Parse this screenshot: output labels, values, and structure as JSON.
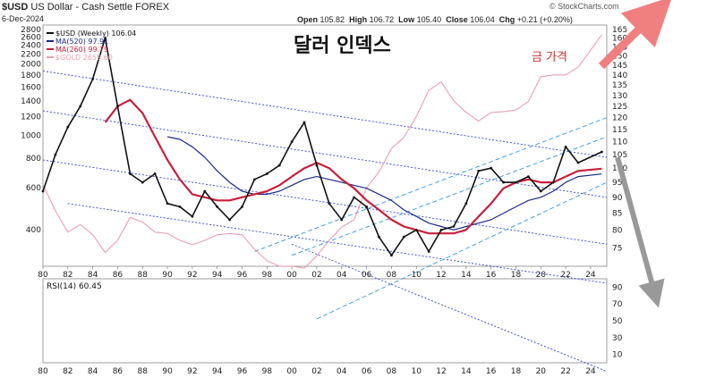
{
  "header": {
    "symbol": "$USD",
    "name": "US Dollar - Cash Settle FOREX",
    "date": "6-Dec-2024",
    "open_label": "Open",
    "open": "105.82",
    "high_label": "High",
    "high": "106.72",
    "low_label": "Low",
    "low": "105.40",
    "close_label": "Close",
    "close": "106.04",
    "chg_label": "Chg",
    "chg": "+0.21 (+0.20%)",
    "watermark": "© StockCharts.com"
  },
  "annotations": {
    "title": "달러 인덱스",
    "gold_label": "금 가격"
  },
  "colors": {
    "usd": "#111111",
    "ma520": "#1a2a8c",
    "ma260": "#c8203c",
    "gold": "#e8a0b0",
    "channel_dotted": "#3344cc",
    "channel_dashed": "#3399dd",
    "arrow_up": "#f08080",
    "arrow_down": "#999999"
  },
  "chart_data": [
    {
      "type": "line",
      "title": "$USD (Weekly) 106.04",
      "legend": [
        {
          "name": "$USD (Weekly)",
          "value": "106.04"
        },
        {
          "name": "MA(520)",
          "value": "97.91"
        },
        {
          "name": "MA(260)",
          "value": "99.79"
        },
        {
          "name": "$GOLD",
          "value": "2659.60"
        }
      ],
      "x_ticks": [
        "80",
        "82",
        "84",
        "86",
        "88",
        "90",
        "92",
        "94",
        "96",
        "98",
        "00",
        "02",
        "04",
        "06",
        "08",
        "10",
        "12",
        "14",
        "16",
        "18",
        "20",
        "22",
        "24"
      ],
      "y_right_ticks": [
        "165",
        "160",
        "155",
        "150",
        "145",
        "140",
        "135",
        "130",
        "125",
        "120",
        "115",
        "110",
        "105",
        "100",
        "95",
        "90",
        "85",
        "80",
        "75"
      ],
      "y_left_ticks": [
        "2800",
        "2600",
        "2400",
        "2200",
        "2000",
        "1800",
        "1600",
        "1400",
        "1200",
        "1000",
        "800",
        "600",
        "400"
      ],
      "x": [
        1980,
        1981,
        1982,
        1983,
        1984,
        1985,
        1986,
        1987,
        1988,
        1989,
        1990,
        1991,
        1992,
        1993,
        1994,
        1995,
        1996,
        1997,
        1998,
        1999,
        2000,
        2001,
        2002,
        2003,
        2004,
        2005,
        2006,
        2007,
        2008,
        2009,
        2010,
        2011,
        2012,
        2013,
        2014,
        2015,
        2016,
        2017,
        2018,
        2019,
        2020,
        2021,
        2022,
        2023,
        2024.9
      ],
      "series": [
        {
          "name": "$USD (Weekly)",
          "axis": "right",
          "values": [
            92,
            105,
            116,
            125,
            138,
            160,
            125,
            98,
            95,
            98,
            88,
            87,
            84,
            92,
            87,
            83,
            87,
            96,
            98,
            101,
            110,
            118,
            101,
            88,
            83,
            90,
            87,
            78,
            73,
            78,
            80,
            74,
            80,
            81,
            88,
            99,
            100,
            95,
            95,
            97,
            92,
            95,
            108,
            102,
            106.04
          ]
        },
        {
          "name": "MA(520)",
          "axis": "right",
          "values": [
            null,
            null,
            null,
            null,
            null,
            null,
            null,
            null,
            null,
            null,
            112,
            111,
            108,
            104,
            99,
            95,
            92,
            91,
            91,
            92,
            94,
            96,
            97,
            96,
            95,
            94,
            93,
            91,
            89,
            86,
            84,
            82,
            81,
            80,
            81,
            82,
            83,
            85,
            87,
            89,
            90,
            92,
            95,
            97,
            97.91
          ]
        },
        {
          "name": "MA(260)",
          "axis": "right",
          "values": [
            null,
            null,
            null,
            null,
            null,
            118,
            125,
            128,
            122,
            112,
            103,
            96,
            91,
            90,
            89,
            89,
            90,
            91,
            92,
            94,
            97,
            100,
            102,
            100,
            96,
            93,
            89,
            86,
            83,
            81,
            80,
            79,
            79,
            79,
            80,
            84,
            88,
            93,
            95,
            96,
            95,
            95,
            97,
            99,
            99.79
          ]
        },
        {
          "name": "$GOLD",
          "axis": "left",
          "values": [
            620,
            480,
            390,
            420,
            380,
            320,
            360,
            450,
            430,
            390,
            385,
            360,
            345,
            360,
            380,
            385,
            380,
            330,
            295,
            280,
            280,
            275,
            310,
            360,
            410,
            440,
            600,
            700,
            880,
            980,
            1200,
            1550,
            1680,
            1400,
            1250,
            1150,
            1250,
            1260,
            1280,
            1390,
            1770,
            1800,
            1800,
            1940,
            2659.6
          ]
        }
      ]
    },
    {
      "type": "line",
      "title": "RSI(14) 60.45",
      "y_ticks": [
        "90",
        "70",
        "50",
        "30",
        "10"
      ],
      "series": [
        {
          "name": "RSI(14)",
          "values": [
            60.45
          ]
        }
      ]
    }
  ]
}
